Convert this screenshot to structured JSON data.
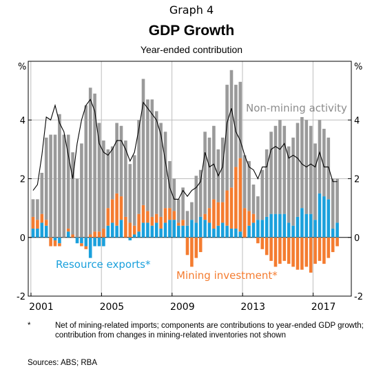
{
  "header": {
    "graph_label": "Graph 4",
    "title": "GDP Growth",
    "subtitle": "Year-ended contribution"
  },
  "axis": {
    "left_unit": "%",
    "right_unit": "%"
  },
  "annotations": {
    "non_mining": "Non-mining activity",
    "resource_exports": "Resource exports*",
    "mining_investment": "Mining investment*"
  },
  "footnote": {
    "marker": "*",
    "text": "Net of mining-related imports; components are contributions to year-ended GDP growth; contribution from changes in mining-related inventories not shown"
  },
  "sources": "Sources:   ABS; RBA",
  "colors": {
    "non_mining": "#9a9a9a",
    "mining_investment": "#f47c30",
    "resource_exports": "#1aa0dc",
    "gdp_line": "#000000",
    "grid": "#bdbdbd"
  },
  "chart_data": {
    "type": "bar",
    "stacked": true,
    "x_start": "2001-Q1",
    "frequency": "quarterly",
    "x_ticks": [
      "2001",
      "2005",
      "2009",
      "2013",
      "2017"
    ],
    "ylim": [
      -2,
      6
    ],
    "y_ticks": [
      -2,
      0,
      2,
      4
    ],
    "grid": true,
    "series": [
      {
        "name": "Non-mining activity",
        "kind": "bar",
        "values": [
          0.6,
          0.7,
          1.4,
          2.8,
          3.5,
          3.5,
          4.2,
          3.5,
          3.2,
          2.8,
          2.0,
          3.2,
          4.5,
          5.0,
          4.7,
          3.7,
          3.0,
          2.0,
          1.8,
          2.4,
          2.4,
          2.6,
          2.0,
          2.4,
          3.2,
          4.3,
          3.8,
          4.0,
          3.5,
          3.2,
          2.6,
          1.6,
          1.1,
          0.8,
          1.1,
          0.5,
          0.6,
          1.6,
          1.6,
          2.8,
          2.4,
          2.5,
          1.8,
          2.2,
          3.6,
          4.0,
          2.8,
          2.6,
          1.8,
          1.7,
          1.0,
          0.8,
          1.7,
          2.3,
          2.8,
          3.0,
          3.2,
          3.0,
          2.6,
          3.0,
          3.2,
          3.1,
          3.2,
          3.0,
          2.6,
          2.5,
          2.3,
          2.1,
          1.7,
          1.5
        ]
      },
      {
        "name": "Mining investment",
        "kind": "bar",
        "values": [
          0.4,
          0.3,
          0.3,
          0.2,
          -0.3,
          -0.2,
          -0.1,
          0.0,
          0.1,
          0.1,
          0.0,
          -0.1,
          -0.1,
          0.1,
          0.2,
          0.2,
          0.3,
          0.6,
          0.8,
          1.1,
          0.8,
          0.7,
          0.5,
          0.3,
          0.6,
          0.6,
          0.4,
          0.3,
          0.3,
          0.4,
          0.5,
          0.4,
          0.3,
          0.1,
          0.2,
          -0.6,
          -1.0,
          -0.7,
          -0.5,
          0.2,
          0.5,
          1.0,
          0.8,
          0.7,
          1.2,
          1.4,
          2.1,
          2.5,
          1.0,
          0.5,
          0.3,
          -0.2,
          -0.4,
          -0.6,
          -0.8,
          -1.0,
          -0.9,
          -0.8,
          -0.9,
          -1.0,
          -1.1,
          -1.1,
          -1.0,
          -1.2,
          -0.9,
          -0.8,
          -0.9,
          -0.7,
          -0.5,
          -0.3
        ]
      },
      {
        "name": "Resource exports",
        "kind": "bar",
        "values": [
          0.3,
          0.3,
          0.5,
          0.4,
          0.0,
          -0.1,
          -0.2,
          0.0,
          0.2,
          0.0,
          -0.2,
          -0.2,
          -0.3,
          -0.7,
          -0.3,
          -0.3,
          -0.3,
          0.4,
          0.5,
          0.4,
          0.6,
          0.0,
          -0.1,
          0.1,
          0.2,
          0.5,
          0.5,
          0.4,
          0.5,
          0.3,
          0.5,
          0.6,
          0.6,
          0.4,
          0.4,
          0.4,
          0.6,
          0.5,
          0.7,
          0.6,
          0.5,
          0.3,
          0.4,
          0.5,
          0.4,
          0.3,
          0.3,
          0.2,
          0.0,
          0.4,
          0.5,
          0.6,
          0.6,
          0.7,
          0.8,
          0.8,
          0.8,
          0.8,
          0.5,
          0.4,
          0.7,
          1.0,
          0.8,
          0.8,
          0.6,
          1.5,
          1.4,
          1.3,
          0.3,
          0.5
        ]
      },
      {
        "name": "GDP growth",
        "kind": "line",
        "values": [
          1.6,
          1.8,
          2.8,
          4.1,
          4.0,
          4.5,
          3.9,
          3.6,
          2.8,
          2.0,
          3.2,
          4.0,
          4.5,
          4.7,
          4.3,
          3.2,
          2.9,
          2.8,
          3.0,
          3.3,
          3.3,
          3.0,
          2.6,
          2.9,
          3.7,
          4.6,
          4.4,
          4.2,
          4.0,
          3.5,
          2.6,
          1.7,
          1.3,
          1.3,
          1.6,
          1.4,
          1.6,
          1.7,
          1.9,
          2.9,
          2.4,
          2.5,
          2.1,
          2.4,
          3.9,
          4.4,
          3.6,
          3.3,
          2.8,
          2.4,
          2.3,
          2.0,
          2.4,
          2.4,
          3.0,
          3.1,
          3.0,
          3.2,
          2.7,
          2.8,
          2.7,
          2.5,
          2.4,
          2.5,
          2.4,
          2.9,
          2.4,
          2.4,
          1.9,
          1.9
        ]
      }
    ]
  }
}
